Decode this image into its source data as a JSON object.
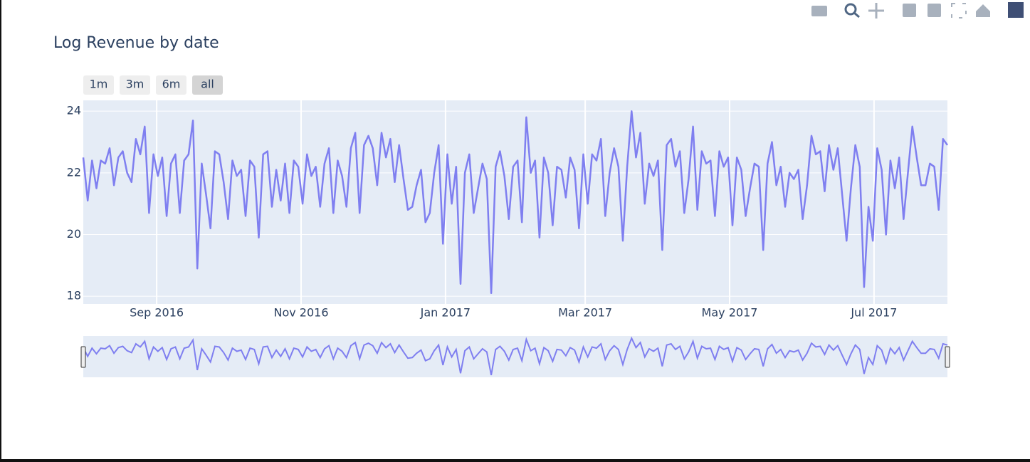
{
  "chart_data": {
    "type": "line",
    "title": "Log Revenue by date",
    "buttons": [
      "1m",
      "3m",
      "6m",
      "all"
    ],
    "active_button": "all",
    "xlim": [
      "2016-08",
      "2017-08"
    ],
    "xticks": [
      {
        "value": "2016-09",
        "label": "Sep 2016"
      },
      {
        "value": "2016-11",
        "label": "Nov 2016"
      },
      {
        "value": "2017-01",
        "label": "Jan 2017"
      },
      {
        "value": "2017-03",
        "label": "Mar 2017"
      },
      {
        "value": "2017-05",
        "label": "May 2017"
      },
      {
        "value": "2017-07",
        "label": "Jul 2017"
      }
    ],
    "ylim": [
      17.75,
      24.35
    ],
    "yticks": [
      18,
      20,
      22,
      24
    ],
    "grid": true,
    "rangeslider": true,
    "series": [
      {
        "color": "#7f7ff0",
        "values": [
          22.5,
          21.1,
          22.4,
          21.5,
          22.4,
          22.3,
          22.8,
          21.6,
          22.5,
          22.7,
          22.0,
          21.7,
          23.1,
          22.6,
          23.5,
          20.7,
          22.6,
          21.9,
          22.5,
          20.6,
          22.3,
          22.6,
          20.7,
          22.4,
          22.6,
          23.7,
          18.9,
          22.3,
          21.3,
          20.2,
          22.7,
          22.6,
          21.7,
          20.5,
          22.4,
          21.9,
          22.1,
          20.6,
          22.4,
          22.2,
          19.9,
          22.6,
          22.7,
          20.9,
          22.1,
          21.1,
          22.3,
          20.7,
          22.4,
          22.2,
          21.0,
          22.6,
          21.9,
          22.2,
          20.9,
          22.3,
          22.8,
          20.7,
          22.4,
          21.9,
          20.9,
          22.8,
          23.3,
          20.7,
          22.9,
          23.2,
          22.8,
          21.6,
          23.3,
          22.5,
          23.1,
          21.7,
          22.9,
          21.8,
          20.8,
          20.9,
          21.6,
          22.1,
          20.4,
          20.7,
          22.0,
          22.9,
          19.7,
          22.6,
          21.0,
          22.2,
          18.4,
          22.0,
          22.6,
          20.7,
          21.5,
          22.3,
          21.8,
          18.1,
          22.2,
          22.7,
          21.9,
          20.5,
          22.2,
          22.4,
          20.4,
          23.8,
          22.0,
          22.4,
          19.9,
          22.5,
          22.0,
          20.3,
          22.2,
          22.1,
          21.2,
          22.5,
          22.1,
          20.2,
          22.6,
          21.0,
          22.6,
          22.4,
          23.1,
          20.6,
          22.0,
          22.8,
          22.2,
          19.8,
          22.2,
          24.0,
          22.5,
          23.3,
          21.0,
          22.3,
          21.9,
          22.4,
          19.5,
          22.9,
          23.1,
          22.2,
          22.7,
          20.7,
          21.8,
          23.5,
          20.8,
          22.7,
          22.3,
          22.4,
          20.6,
          22.7,
          22.2,
          22.5,
          20.3,
          22.5,
          22.1,
          20.6,
          21.5,
          22.3,
          22.2,
          19.5,
          22.3,
          23.0,
          21.6,
          22.2,
          20.9,
          22.0,
          21.8,
          22.1,
          20.5,
          21.6,
          23.2,
          22.6,
          22.7,
          21.4,
          22.9,
          22.1,
          22.8,
          21.3,
          19.8,
          21.5,
          22.9,
          22.2,
          18.3,
          20.9,
          19.8,
          22.8,
          22.1,
          20.0,
          22.4,
          21.5,
          22.5,
          20.5,
          22.0,
          23.5,
          22.5,
          21.6,
          21.6,
          22.3,
          22.2,
          20.8,
          23.1,
          22.9
        ]
      }
    ]
  }
}
